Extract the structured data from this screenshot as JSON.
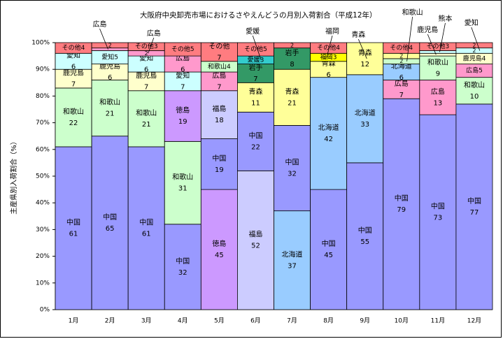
{
  "chart_data": {
    "type": "bar",
    "stacked": true,
    "title": "大阪府中央卸売市場におけるさやえんどうの月別入荷割合（平成12年）",
    "xlabel": "",
    "ylabel": "主産県別入荷割合（%）",
    "ylim": [
      0,
      100
    ],
    "yticks": [
      "0%",
      "10%",
      "20%",
      "30%",
      "40%",
      "50%",
      "60%",
      "70%",
      "80%",
      "90%",
      "100%"
    ],
    "categories": [
      "1月",
      "2月",
      "3月",
      "4月",
      "5月",
      "6月",
      "7月",
      "8月",
      "9月",
      "10月",
      "11月",
      "12月"
    ],
    "colors": {
      "中国": "#9999ff",
      "和歌山": "#ccffcc",
      "鹿児島": "#ffffcc",
      "愛知": "#ccffff",
      "広島": "#ff99cc",
      "その他": "#ff7c80",
      "徳島": "#cc99ff",
      "福島": "#ccccff",
      "北海道": "#99ccff",
      "青森": "#ffff99",
      "岩手": "#339966",
      "愛媛": "#33cccc",
      "福岡": "#ffff00",
      "熊本": "#ccffff"
    },
    "months": [
      {
        "segments": [
          {
            "name": "中国",
            "value": 61
          },
          {
            "name": "和歌山",
            "value": 22
          },
          {
            "name": "鹿児島",
            "value": 7
          },
          {
            "name": "愛知",
            "value": 6
          },
          {
            "name": "広島",
            "value": 0
          },
          {
            "name": "その他",
            "value": 4
          }
        ]
      },
      {
        "segments": [
          {
            "name": "中国",
            "value": 65
          },
          {
            "name": "和歌山",
            "value": 21
          },
          {
            "name": "鹿児島",
            "value": 6
          },
          {
            "name": "愛知",
            "value": 5
          },
          {
            "name": "広島",
            "value": 1
          },
          {
            "name": "その他",
            "value": 2
          }
        ]
      },
      {
        "segments": [
          {
            "name": "中国",
            "value": 61
          },
          {
            "name": "和歌山",
            "value": 21
          },
          {
            "name": "鹿児島",
            "value": 7
          },
          {
            "name": "愛知",
            "value": 6
          },
          {
            "name": "広島",
            "value": 2
          },
          {
            "name": "その他",
            "value": 3
          }
        ]
      },
      {
        "segments": [
          {
            "name": "中国",
            "value": 32
          },
          {
            "name": "和歌山",
            "value": 31
          },
          {
            "name": "徳島",
            "value": 19
          },
          {
            "name": "愛知",
            "value": 7
          },
          {
            "name": "広島",
            "value": 6
          },
          {
            "name": "その他",
            "value": 5
          }
        ]
      },
      {
        "segments": [
          {
            "name": "徳島",
            "value": 45
          },
          {
            "name": "中国",
            "value": 19
          },
          {
            "name": "福島",
            "value": 18
          },
          {
            "name": "広島",
            "value": 7
          },
          {
            "name": "和歌山",
            "value": 4
          },
          {
            "name": "その他",
            "value": 7
          }
        ]
      },
      {
        "segments": [
          {
            "name": "福島",
            "value": 52
          },
          {
            "name": "中国",
            "value": 22
          },
          {
            "name": "青森",
            "value": 11
          },
          {
            "name": "岩手",
            "value": 7
          },
          {
            "name": "愛媛",
            "value": 3
          },
          {
            "name": "その他",
            "value": 5
          }
        ]
      },
      {
        "segments": [
          {
            "name": "北海道",
            "value": 37
          },
          {
            "name": "中国",
            "value": 32
          },
          {
            "name": "青森",
            "value": 21
          },
          {
            "name": "岩手",
            "value": 8
          },
          {
            "name": "その他",
            "value": 2
          }
        ]
      },
      {
        "segments": [
          {
            "name": "中国",
            "value": 45
          },
          {
            "name": "北海道",
            "value": 42
          },
          {
            "name": "青森",
            "value": 6
          },
          {
            "name": "福岡",
            "value": 3
          },
          {
            "name": "その他",
            "value": 4
          }
        ]
      },
      {
        "segments": [
          {
            "name": "中国",
            "value": 55
          },
          {
            "name": "北海道",
            "value": 33
          },
          {
            "name": "青森",
            "value": 12
          },
          {
            "name": "その他",
            "value": 0
          }
        ]
      },
      {
        "segments": [
          {
            "name": "中国",
            "value": 79
          },
          {
            "name": "広島",
            "value": 7
          },
          {
            "name": "北海道",
            "value": 6
          },
          {
            "name": "和歌山",
            "value": 2
          },
          {
            "name": "青森",
            "value": 2
          },
          {
            "name": "その他",
            "value": 4
          }
        ]
      },
      {
        "segments": [
          {
            "name": "中国",
            "value": 73
          },
          {
            "name": "広島",
            "value": 13
          },
          {
            "name": "和歌山",
            "value": 9
          },
          {
            "name": "鹿児島",
            "value": 1
          },
          {
            "name": "熊本",
            "value": 1
          },
          {
            "name": "その他",
            "value": 3
          }
        ]
      },
      {
        "segments": [
          {
            "name": "中国",
            "value": 77
          },
          {
            "name": "和歌山",
            "value": 10
          },
          {
            "name": "広島",
            "value": 5
          },
          {
            "name": "鹿児島",
            "value": 4
          },
          {
            "name": "愛知",
            "value": 2
          },
          {
            "name": "その他",
            "value": 2
          }
        ]
      }
    ],
    "annotations": [
      {
        "text": "広島",
        "month_index": 1,
        "segment_index": 4
      },
      {
        "text": "広島",
        "month_index": 2,
        "segment_index": 4
      },
      {
        "text": "愛媛",
        "month_index": 5,
        "segment_index": 4
      },
      {
        "text": "福岡",
        "month_index": 7,
        "segment_index": 3
      },
      {
        "text": "青森",
        "month_index": 8,
        "segment_index": 2
      },
      {
        "text": "和歌山",
        "month_index": 9,
        "segment_index": 3
      },
      {
        "text": "鹿児島",
        "month_index": 10,
        "segment_index": 3
      },
      {
        "text": "熊本",
        "month_index": 10,
        "segment_index": 4
      },
      {
        "text": "愛知",
        "month_index": 11,
        "segment_index": 4
      }
    ]
  }
}
